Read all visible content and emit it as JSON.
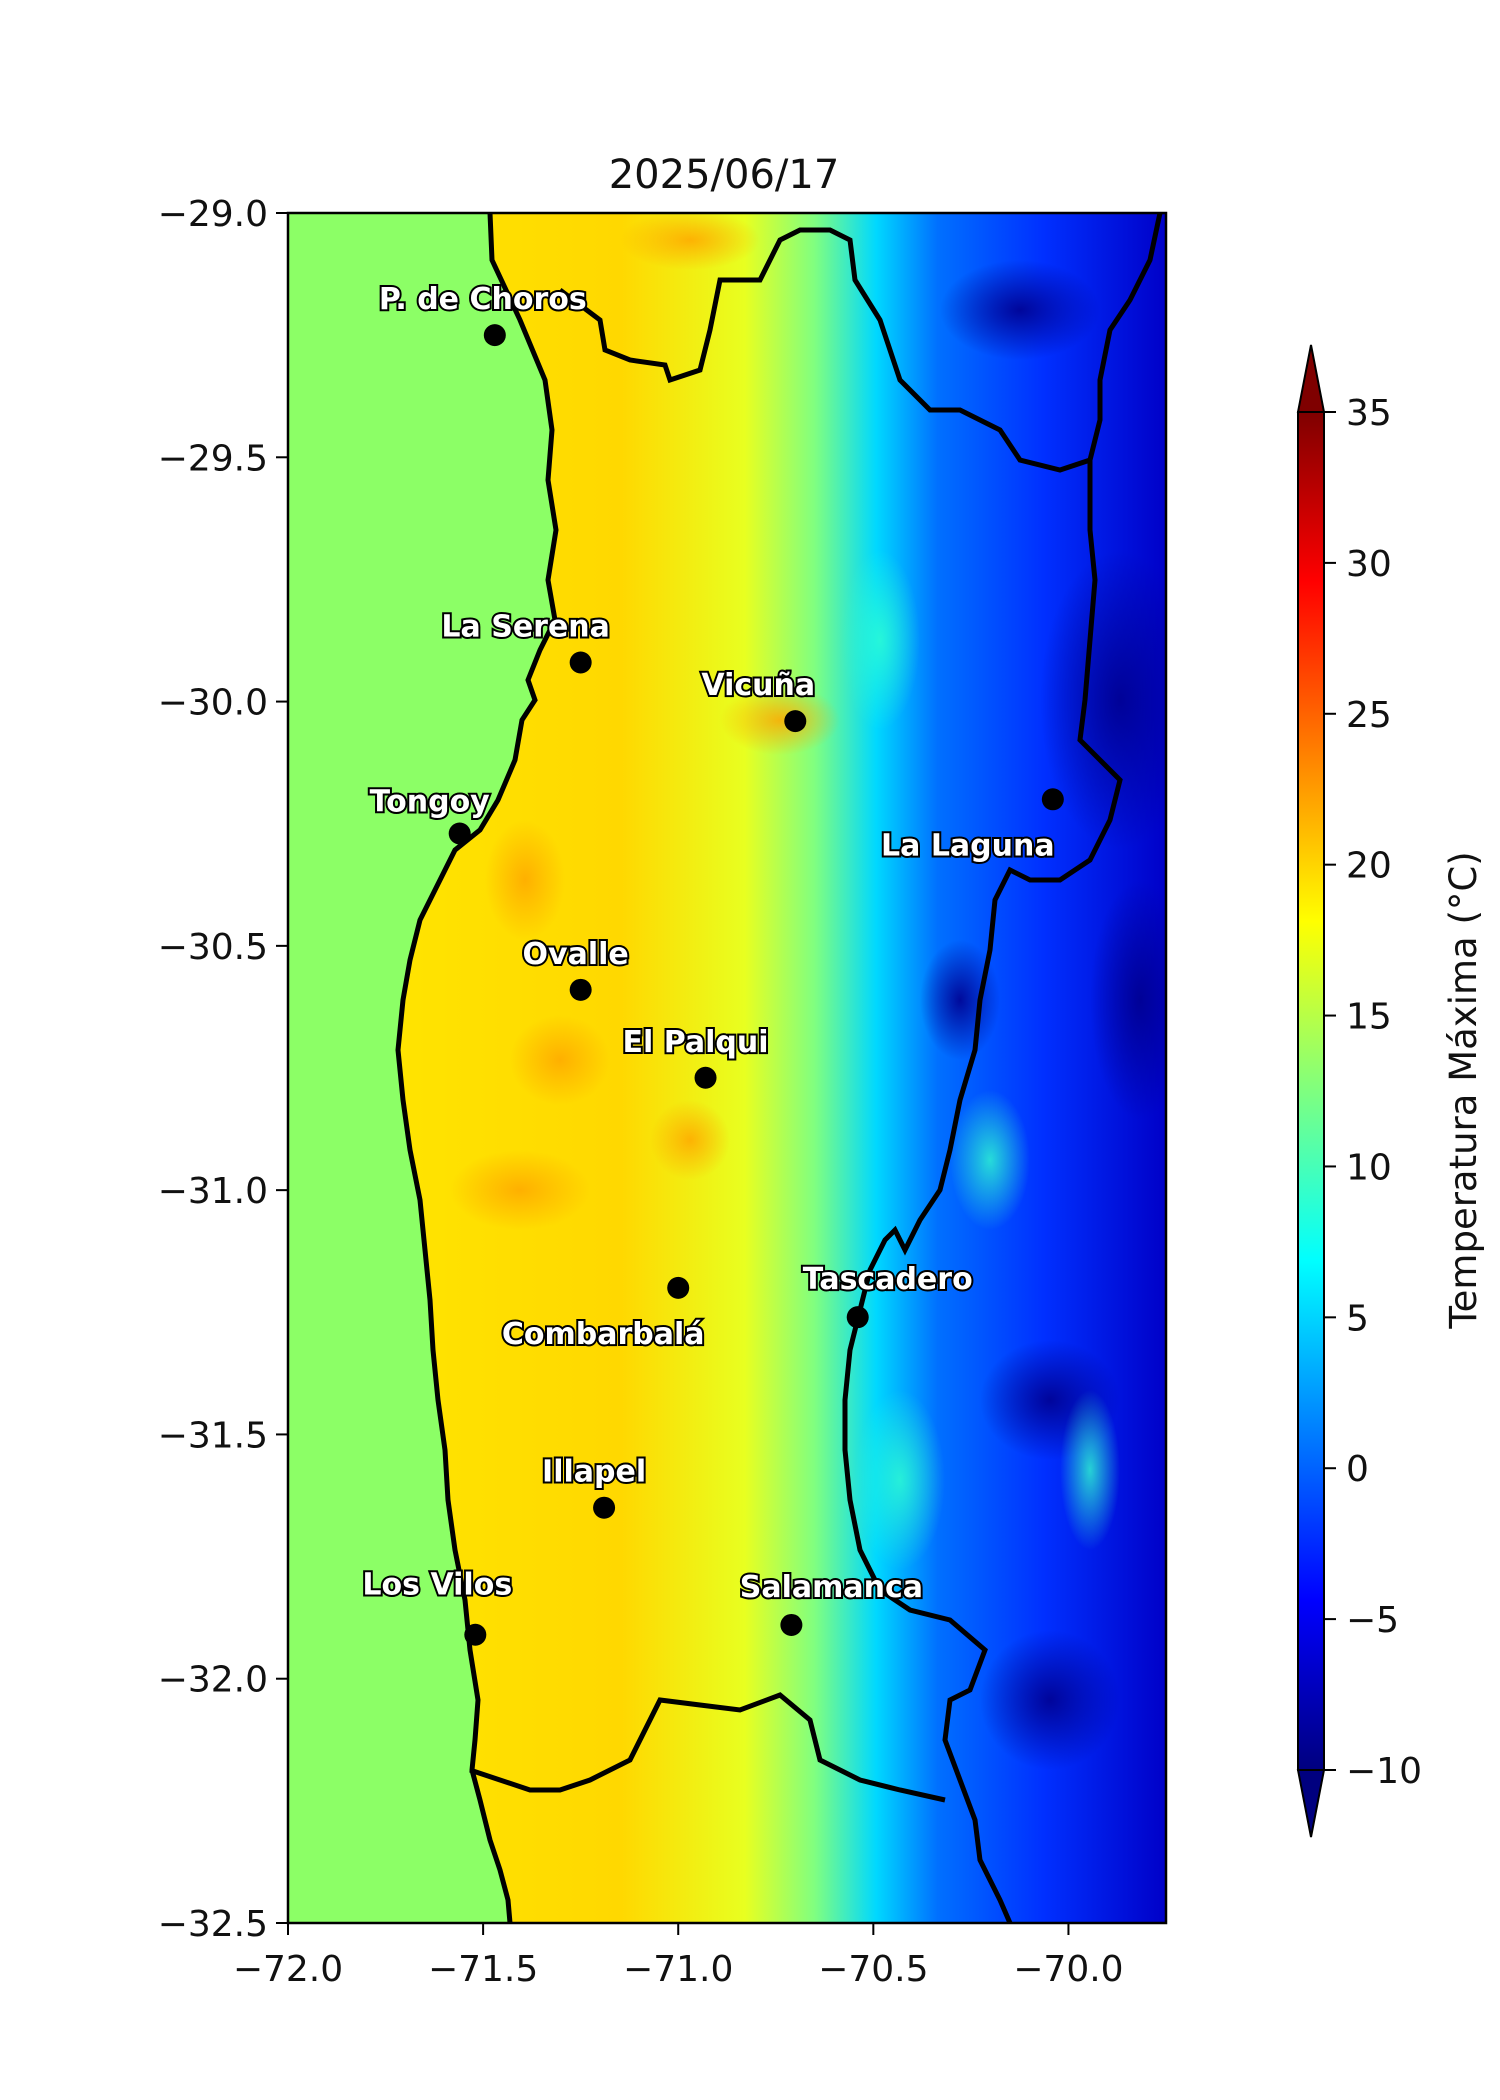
{
  "title": "2025/06/17",
  "x_ticks": [
    "−72.0",
    "−71.5",
    "−71.0",
    "−70.5",
    "−70.0"
  ],
  "y_ticks": [
    "−29.0",
    "−29.5",
    "−30.0",
    "−30.5",
    "−31.0",
    "−31.5",
    "−32.0",
    "−32.5"
  ],
  "colorbar": {
    "label": "Temperatura Máxima (°C)",
    "ticks": [
      "35",
      "30",
      "25",
      "20",
      "15",
      "10",
      "5",
      "0",
      "−5",
      "−10"
    ],
    "min": -10,
    "max": 35,
    "extend": "both",
    "colormap": [
      "#00007f",
      "#0000ff",
      "#007fff",
      "#00ffff",
      "#7fff7f",
      "#ffff00",
      "#ff7f00",
      "#ff0000",
      "#7f0000"
    ]
  },
  "map": {
    "lon_range": [
      -72.0,
      -69.75
    ],
    "lat_range": [
      -32.5,
      -29.0
    ],
    "ocean_color": "#8cff66"
  },
  "stations": [
    {
      "name": "P. de Choros",
      "lon": -71.47,
      "lat": -29.25
    },
    {
      "name": "La Serena",
      "lon": -71.25,
      "lat": -29.92
    },
    {
      "name": "Vicuña",
      "lon": -70.7,
      "lat": -30.04
    },
    {
      "name": "Tongoy",
      "lon": -71.56,
      "lat": -30.27
    },
    {
      "name": "La Laguna",
      "lon": -70.04,
      "lat": -30.2
    },
    {
      "name": "Ovalle",
      "lon": -71.25,
      "lat": -30.59
    },
    {
      "name": "El Palqui",
      "lon": -70.93,
      "lat": -30.77
    },
    {
      "name": "Combarbalá",
      "lon": -71.0,
      "lat": -31.2
    },
    {
      "name": "Tascadero",
      "lon": -70.54,
      "lat": -31.26
    },
    {
      "name": "Illapel",
      "lon": -71.19,
      "lat": -31.65
    },
    {
      "name": "Los Vilos",
      "lon": -71.52,
      "lat": -31.91
    },
    {
      "name": "Salamanca",
      "lon": -70.71,
      "lat": -31.89
    }
  ]
}
